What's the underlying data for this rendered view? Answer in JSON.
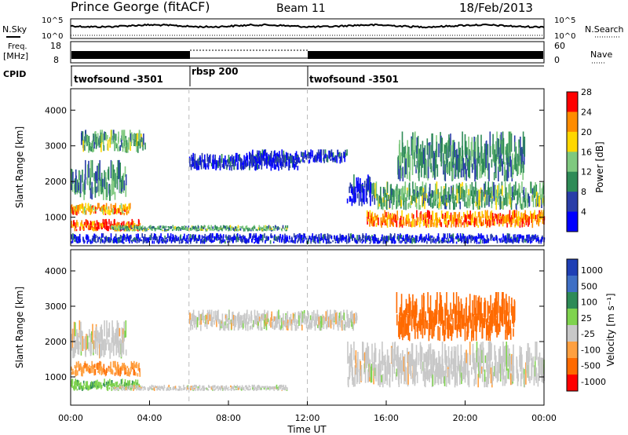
{
  "header": {
    "title": "Prince George (fitACF)",
    "beam": "Beam 11",
    "date": "18/Feb/2013"
  },
  "top_panels": {
    "nsky": {
      "label": "N.Sky",
      "ticks": [
        "10^5",
        "10^0"
      ]
    },
    "nsearch": {
      "label": "N.Search",
      "ticks": [
        "10^5",
        "10^0"
      ]
    },
    "freq": {
      "label_line1": "Freq.",
      "label_line2": "[MHz]",
      "ticks": [
        "18",
        "8"
      ]
    },
    "nave": {
      "label": "Nave",
      "ticks": [
        "60",
        "0"
      ]
    },
    "cpid": {
      "label": "CPID",
      "segments": [
        {
          "name": "twofsound -3501",
          "start_hour": 0,
          "end_hour": 6
        },
        {
          "name": "rbsp 200",
          "start_hour": 6,
          "end_hour": 12
        },
        {
          "name": "twofsound -3501",
          "start_hour": 12,
          "end_hour": 24
        }
      ]
    }
  },
  "chart_data": [
    {
      "type": "heatmap",
      "panel": "power",
      "xlabel": "",
      "ylabel": "Slant Range [km]",
      "xlim": [
        0,
        24
      ],
      "ylim": [
        200,
        4600
      ],
      "yticks": [
        "1000",
        "2000",
        "3000",
        "4000"
      ],
      "colorbar": {
        "label": "Power [dB]",
        "ticks": [
          "4",
          "8",
          "12",
          "16",
          "20",
          "24",
          "28"
        ],
        "colors": [
          "#0000ff",
          "#2a3ea8",
          "#2e8b57",
          "#7fc97f",
          "#ffd700",
          "#ff8c00",
          "#ff0000"
        ]
      },
      "echo_regions": [
        {
          "t0": 0.0,
          "t1": 3.5,
          "r0": 600,
          "r1": 950,
          "value": 26
        },
        {
          "t0": 0.0,
          "t1": 3.0,
          "r0": 1050,
          "r1": 1400,
          "value": 22
        },
        {
          "t0": 0.0,
          "t1": 2.8,
          "r0": 1450,
          "r1": 2600,
          "value": 12
        },
        {
          "t0": 0.5,
          "t1": 3.8,
          "r0": 2800,
          "r1": 3450,
          "value": 14
        },
        {
          "t0": 2.0,
          "t1": 11.0,
          "r0": 600,
          "r1": 780,
          "value": 14
        },
        {
          "t0": 6.0,
          "t1": 11.5,
          "r0": 2300,
          "r1": 2800,
          "value": 6
        },
        {
          "t0": 9.0,
          "t1": 14.0,
          "r0": 2500,
          "r1": 2900,
          "value": 6
        },
        {
          "t0": 14.0,
          "t1": 15.2,
          "r0": 1300,
          "r1": 2200,
          "value": 6
        },
        {
          "t0": 15.0,
          "t1": 24.0,
          "r0": 700,
          "r1": 1200,
          "value": 24
        },
        {
          "t0": 15.2,
          "t1": 24.0,
          "r0": 1200,
          "r1": 2000,
          "value": 14
        },
        {
          "t0": 16.5,
          "t1": 23.0,
          "r0": 2000,
          "r1": 3400,
          "value": 12
        },
        {
          "t0": 0.0,
          "t1": 24.0,
          "r0": 250,
          "r1": 550,
          "value": 6
        }
      ]
    },
    {
      "type": "heatmap",
      "panel": "velocity",
      "xlabel": "Time UT",
      "ylabel": "Slant Range [km]",
      "xlim": [
        0,
        24
      ],
      "ylim": [
        200,
        4600
      ],
      "yticks": [
        "1000",
        "2000",
        "3000",
        "4000"
      ],
      "xticks": [
        "00:00",
        "04:00",
        "08:00",
        "12:00",
        "16:00",
        "20:00",
        "00:00"
      ],
      "colorbar": {
        "label": "Velocity [m s⁻¹]",
        "ticks": [
          "1000",
          "500",
          "100",
          "25",
          "-25",
          "-100",
          "-500",
          "-1000"
        ],
        "colors": [
          "#1f3fb5",
          "#3f6fc5",
          "#2e8b57",
          "#7fd34e",
          "#c8c8c8",
          "#ffa040",
          "#ff6a00",
          "#ff0000"
        ]
      },
      "echo_regions": [
        {
          "t0": 0.0,
          "t1": 3.5,
          "r0": 600,
          "r1": 950,
          "value": 80
        },
        {
          "t0": 0.0,
          "t1": 3.5,
          "r0": 1000,
          "r1": 1450,
          "value": -80
        },
        {
          "t0": 0.0,
          "t1": 2.8,
          "r0": 1500,
          "r1": 2600,
          "value": 0
        },
        {
          "t0": 2.0,
          "t1": 11.0,
          "r0": 600,
          "r1": 780,
          "value": 0
        },
        {
          "t0": 6.0,
          "t1": 14.5,
          "r0": 2300,
          "r1": 2900,
          "value": 0
        },
        {
          "t0": 14.0,
          "t1": 24.0,
          "r0": 700,
          "r1": 2000,
          "value": 0
        },
        {
          "t0": 16.5,
          "t1": 22.5,
          "r0": 2000,
          "r1": 3400,
          "value": -300
        }
      ]
    }
  ],
  "markers": {
    "vertical_dashed_hours": [
      6,
      12
    ]
  }
}
